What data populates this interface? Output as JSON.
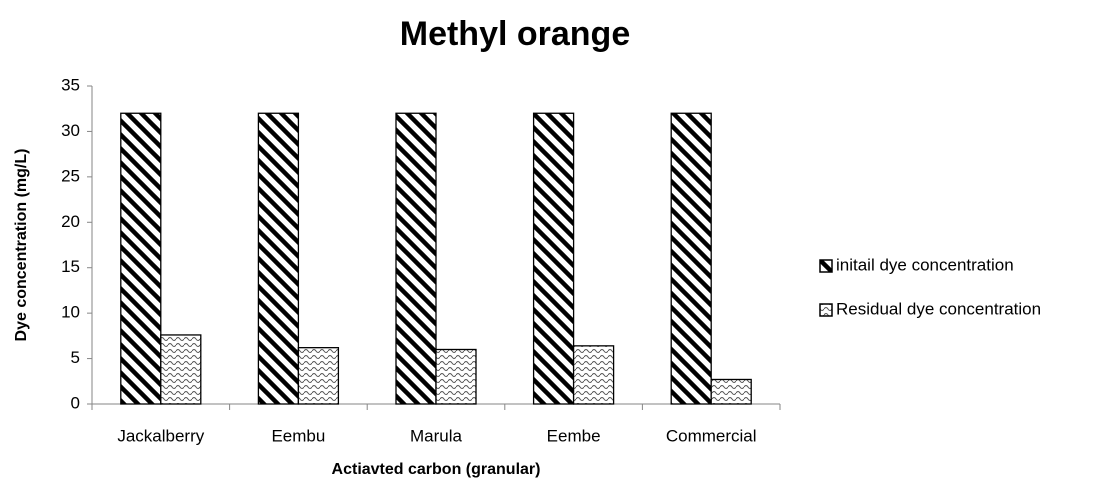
{
  "chart_data": {
    "type": "bar",
    "title": "Methyl orange",
    "x_label": "Actiavted carbon (granular)",
    "y_label": "Dye concentration (mg/L)",
    "categories": [
      "Jackalberry",
      "Eembu",
      "Marula",
      "Eembe",
      "Commercial"
    ],
    "series": [
      {
        "name": "initail dye concentration",
        "color": "#000000",
        "values": [
          32,
          32,
          32,
          32,
          32
        ]
      },
      {
        "name": "Residual dye concentration",
        "color": "#000000",
        "values": [
          7.6,
          6.2,
          6.0,
          6.4,
          2.7
        ]
      }
    ],
    "ylim": [
      0,
      35
    ],
    "yticks": [
      0,
      5,
      10,
      15,
      20,
      25,
      30,
      35
    ],
    "grid": false,
    "legend": "right"
  }
}
